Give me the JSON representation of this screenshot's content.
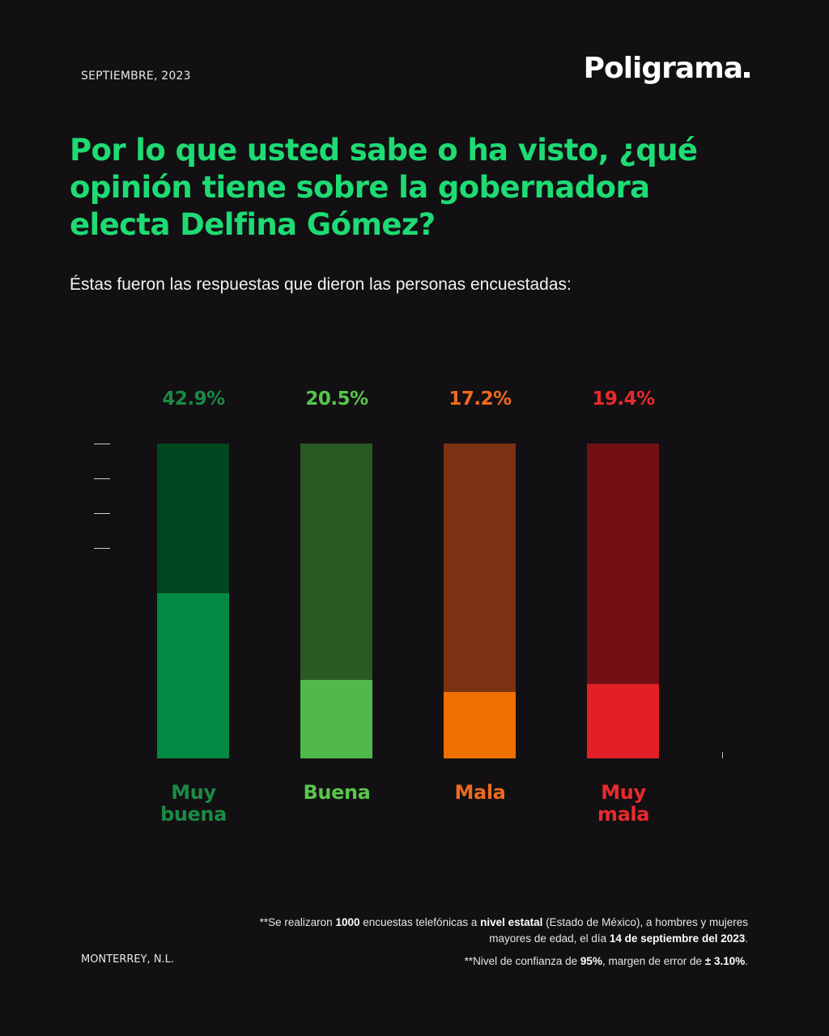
{
  "header": {
    "date": "SEPTIEMBRE, 2023",
    "brand": "Poligrama"
  },
  "question": "Por lo que usted sabe o ha visto, ¿qué opinión tiene sobre la gobernadora electa Delfina Gómez?",
  "subtitle": "Éstas fueron las respuestas que dieron las personas encuestadas:",
  "chart_data": {
    "type": "bar",
    "categories": [
      "Muy buena",
      "Buena",
      "Mala",
      "Muy mala"
    ],
    "values": [
      42.9,
      20.5,
      17.2,
      19.4
    ],
    "value_labels": [
      "42.9%",
      "20.5%",
      "17.2%",
      "19.4%"
    ],
    "category_label_lines": [
      [
        "Muy",
        "buena"
      ],
      [
        "Buena"
      ],
      [
        "Mala"
      ],
      [
        "Muy",
        "mala"
      ]
    ],
    "ylim": [
      0,
      82
    ],
    "grid": false,
    "legend": "none",
    "colors": {
      "fill": [
        "#008a43",
        "#51b84b",
        "#ef7000",
        "#e32027"
      ],
      "track": [
        "#00461f",
        "#2a5a24",
        "#7c3313",
        "#721015"
      ],
      "label": [
        "#1a8a45",
        "#58c64b",
        "#ee6a1e",
        "#e92a2d"
      ]
    }
  },
  "footer": {
    "location": "MONTERREY, N.L.",
    "method_note": {
      "p1": "**Se realizaron ",
      "b1": "1000",
      "p2": " encuestas telefónicas a ",
      "b2": "nivel estatal",
      "p3": " (Estado de México),  a hombres y mujeres mayores de edad, el día ",
      "b3": "14 de septiembre del 2023",
      "p4": "."
    },
    "confidence_note": {
      "p1": "**Nivel de confianza de ",
      "b1": "95%",
      "p2": ", margen de error de ",
      "b2": "± 3.10%",
      "p3": "."
    }
  }
}
